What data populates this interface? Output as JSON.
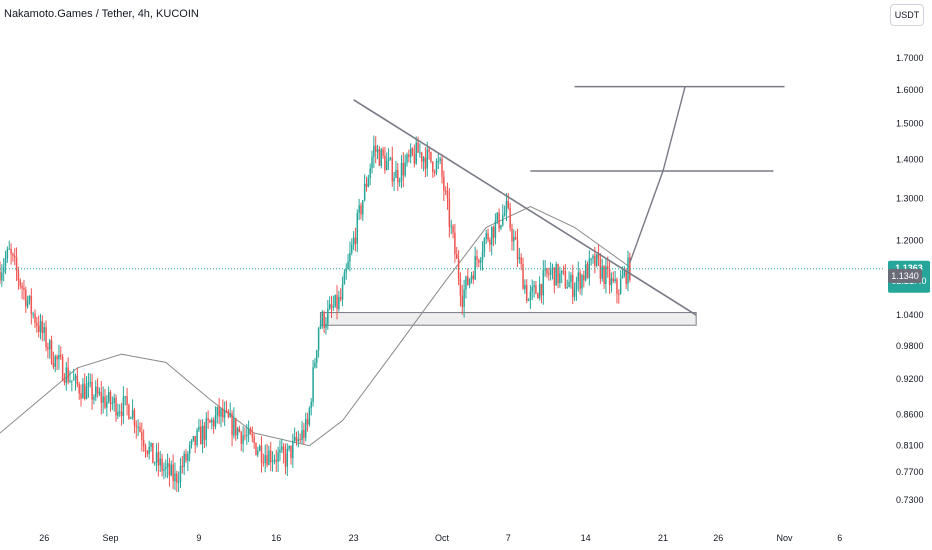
{
  "header": {
    "title": "Nakamoto.Games / Tether, 4h, KUCOIN",
    "currency_button": "USDT"
  },
  "colors": {
    "up": "#26a69a",
    "down": "#ef5350",
    "ma": "#8a8a8a",
    "drawing": "#787b86",
    "price_line": "#26a69a",
    "badge_dark": "#6a6d78"
  },
  "chart_data": {
    "type": "candlestick",
    "title": "Nakamoto.Games / Tether, 4h, KUCOIN",
    "y_scale": "log",
    "ylim": [
      0.7,
      1.85
    ],
    "y_ticks": [
      "1.7000",
      "1.6000",
      "1.5000",
      "1.4000",
      "1.3000",
      "1.2000",
      "1.0400",
      "0.9800",
      "0.9200",
      "0.8600",
      "0.8100",
      "0.7700",
      "0.7300"
    ],
    "x_ticks": [
      {
        "label": "26",
        "date": "2023-08-26"
      },
      {
        "label": "Sep",
        "date": "2023-09-01"
      },
      {
        "label": "9",
        "date": "2023-09-09"
      },
      {
        "label": "16",
        "date": "2023-09-16"
      },
      {
        "label": "23",
        "date": "2023-09-23"
      },
      {
        "label": "Oct",
        "date": "2023-10-01"
      },
      {
        "label": "7",
        "date": "2023-10-07"
      },
      {
        "label": "14",
        "date": "2023-10-14"
      },
      {
        "label": "21",
        "date": "2023-10-21"
      },
      {
        "label": "26",
        "date": "2023-10-26"
      },
      {
        "label": "Nov",
        "date": "2023-11-01"
      },
      {
        "label": "6",
        "date": "2023-11-06"
      }
    ],
    "xlim": [
      "2023-08-22",
      "2023-11-10"
    ],
    "price_path": [
      [
        "2023-08-22",
        1.13
      ],
      [
        "2023-08-23",
        1.17
      ],
      [
        "2023-08-25",
        1.05
      ],
      [
        "2023-08-27",
        0.96
      ],
      [
        "2023-08-29",
        0.91
      ],
      [
        "2023-09-01",
        0.88
      ],
      [
        "2023-09-03",
        0.87
      ],
      [
        "2023-09-05",
        0.79
      ],
      [
        "2023-09-07",
        0.76
      ],
      [
        "2023-09-09",
        0.82
      ],
      [
        "2023-09-11",
        0.86
      ],
      [
        "2023-09-13",
        0.83
      ],
      [
        "2023-09-15",
        0.8
      ],
      [
        "2023-09-17",
        0.79
      ],
      [
        "2023-09-19",
        0.84
      ],
      [
        "2023-09-20",
        1.02
      ],
      [
        "2023-09-22",
        1.07
      ],
      [
        "2023-09-23",
        1.18
      ],
      [
        "2023-09-25",
        1.43
      ],
      [
        "2023-09-27",
        1.36
      ],
      [
        "2023-09-29",
        1.42
      ],
      [
        "2023-10-01",
        1.38
      ],
      [
        "2023-10-03",
        1.08
      ],
      [
        "2023-10-05",
        1.2
      ],
      [
        "2023-10-07",
        1.27
      ],
      [
        "2023-10-09",
        1.07
      ],
      [
        "2023-10-11",
        1.13
      ],
      [
        "2023-10-13",
        1.1
      ],
      [
        "2023-10-15",
        1.15
      ],
      [
        "2023-10-17",
        1.09
      ],
      [
        "2023-10-18",
        1.1363
      ]
    ],
    "moving_average": [
      [
        "2023-08-22",
        0.83
      ],
      [
        "2023-08-29",
        0.94
      ],
      [
        "2023-09-02",
        0.965
      ],
      [
        "2023-09-06",
        0.95
      ],
      [
        "2023-09-10",
        0.885
      ],
      [
        "2023-09-14",
        0.83
      ],
      [
        "2023-09-19",
        0.81
      ],
      [
        "2023-09-22",
        0.85
      ],
      [
        "2023-09-27",
        0.98
      ],
      [
        "2023-10-01",
        1.1
      ],
      [
        "2023-10-05",
        1.23
      ],
      [
        "2023-10-09",
        1.28
      ],
      [
        "2023-10-13",
        1.23
      ],
      [
        "2023-10-18",
        1.14
      ]
    ],
    "drawings": {
      "descending_trendline": {
        "from": [
          "2023-09-23",
          1.57
        ],
        "to": [
          "2023-10-24",
          1.04
        ]
      },
      "support_zone": {
        "from": "2023-09-20",
        "to": "2023-10-24",
        "low": 1.02,
        "high": 1.045
      },
      "target_line_1": {
        "from": "2023-10-09",
        "to": "2023-10-31",
        "price": 1.37
      },
      "target_line_2": {
        "from": "2023-10-13",
        "to": "2023-11-01",
        "price": 1.61
      },
      "projection_path": [
        [
          "2023-10-18",
          1.15
        ],
        [
          "2023-10-21",
          1.37
        ],
        [
          "2023-10-23",
          1.61
        ]
      ]
    },
    "current_price": {
      "value": "1.1363",
      "countdown": "02:21:40",
      "prior_level": "1.1340"
    }
  }
}
